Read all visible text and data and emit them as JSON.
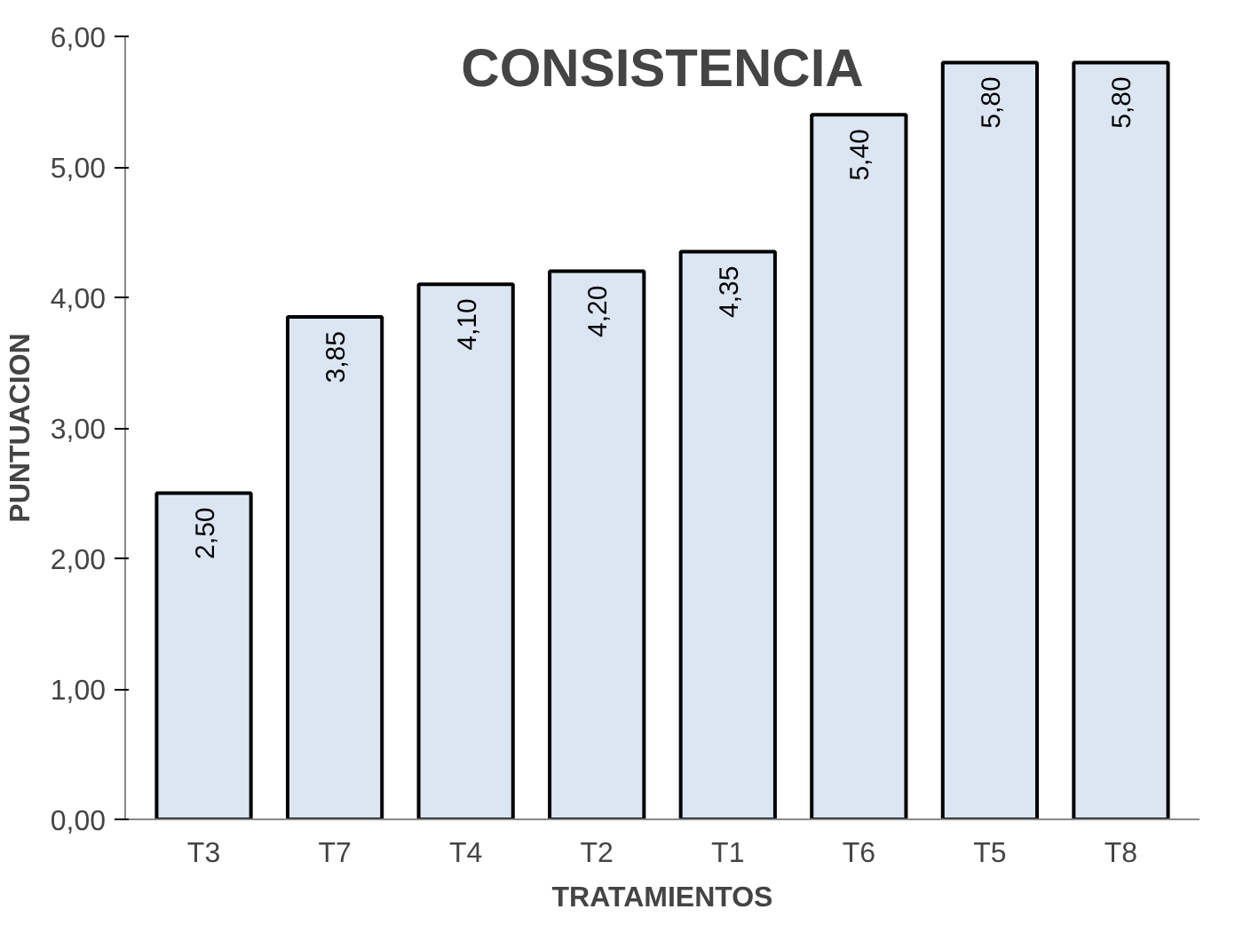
{
  "chart_data": {
    "type": "bar",
    "title": "CONSISTENCIA",
    "xlabel": "TRATAMIENTOS",
    "ylabel": "PUNTUACION",
    "categories": [
      "T3",
      "T7",
      "T4",
      "T2",
      "T1",
      "T6",
      "T5",
      "T8"
    ],
    "values": [
      2.5,
      3.85,
      4.1,
      4.2,
      4.35,
      5.4,
      5.8,
      5.8
    ],
    "value_labels": [
      "2,50",
      "3,85",
      "4,10",
      "4,20",
      "4,35",
      "5,40",
      "5,80",
      "5,80"
    ],
    "color": "#dce6f2",
    "ylim": [
      0,
      6
    ],
    "yticks": [
      {
        "value": 0,
        "label": "0,00"
      },
      {
        "value": 1,
        "label": "1,00"
      },
      {
        "value": 2,
        "label": "2,00"
      },
      {
        "value": 3,
        "label": "3,00"
      },
      {
        "value": 4,
        "label": "4,00"
      },
      {
        "value": 5,
        "label": "5,00"
      },
      {
        "value": 6,
        "label": "6,00"
      }
    ],
    "grid": false
  }
}
